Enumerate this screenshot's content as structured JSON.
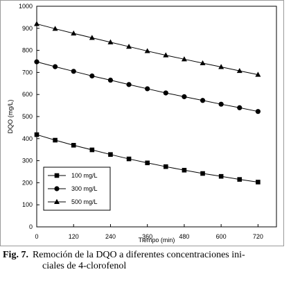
{
  "caption": {
    "label": "Fig. 7.",
    "line1": "Remoción de la DQO a diferentes concentraciones ini-",
    "line2": "ciales de 4-clorofenol"
  },
  "chart_data": {
    "type": "line",
    "xlabel": "Tiempo (min)",
    "ylabel": "DQO (mg/L)",
    "xlim": [
      0,
      780
    ],
    "ylim": [
      0,
      1000
    ],
    "xticks": [
      0,
      120,
      240,
      360,
      480,
      600,
      720
    ],
    "yticks": [
      0,
      100,
      200,
      300,
      400,
      500,
      600,
      700,
      800,
      900,
      1000
    ],
    "legend_position": "bottom-left",
    "grid": false,
    "series": [
      {
        "name": "100 mg/L",
        "marker": "square",
        "x": [
          0,
          60,
          120,
          180,
          240,
          300,
          360,
          420,
          480,
          540,
          600,
          660,
          720
        ],
        "y": [
          418,
          393,
          370,
          349,
          328,
          308,
          290,
          273,
          257,
          242,
          229,
          215,
          203
        ]
      },
      {
        "name": "300 mg/L",
        "marker": "circle",
        "x": [
          0,
          60,
          120,
          180,
          240,
          300,
          360,
          420,
          480,
          540,
          600,
          660,
          720
        ],
        "y": [
          748,
          726,
          705,
          684,
          665,
          645,
          626,
          607,
          590,
          573,
          556,
          540,
          523
        ]
      },
      {
        "name": "500 mg/L",
        "marker": "triangle",
        "x": [
          0,
          60,
          120,
          180,
          240,
          300,
          360,
          420,
          480,
          540,
          600,
          660,
          720
        ],
        "y": [
          920,
          898,
          877,
          857,
          837,
          817,
          797,
          778,
          760,
          742,
          725,
          707,
          690
        ]
      }
    ]
  }
}
